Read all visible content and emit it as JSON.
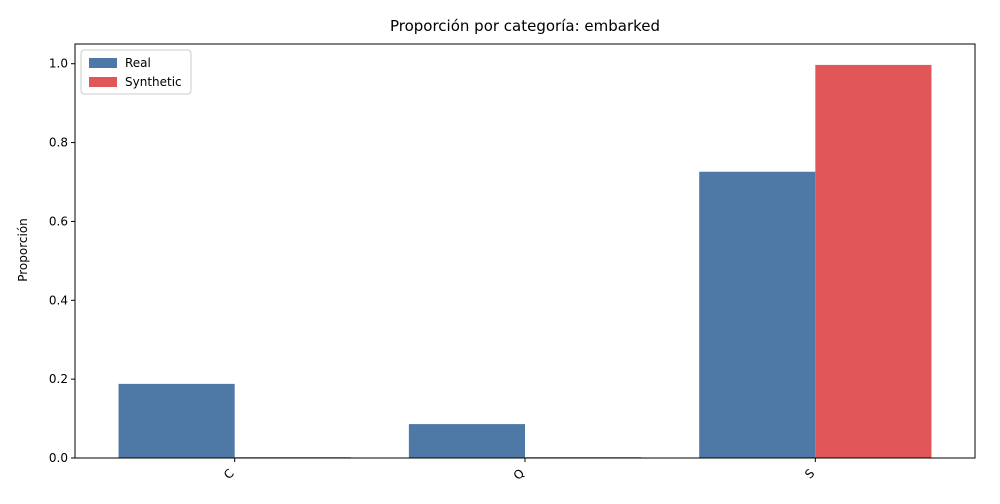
{
  "chart_data": {
    "type": "bar",
    "title": "Proporción por categoría: embarked",
    "xlabel": "",
    "ylabel": "Proporción",
    "categories": [
      "C",
      "Q",
      "S"
    ],
    "series": [
      {
        "name": "Real",
        "values": [
          0.188,
          0.086,
          0.726
        ],
        "color": "#4e79a7"
      },
      {
        "name": "Synthetic",
        "values": [
          0.002,
          0.002,
          0.997
        ],
        "color": "#e15759"
      }
    ],
    "ylim": [
      0,
      1.05
    ],
    "yticks": [
      0.0,
      0.2,
      0.4,
      0.6,
      0.8,
      1.0
    ],
    "ytick_labels": [
      "0.0",
      "0.2",
      "0.4",
      "0.6",
      "0.8",
      "1.0"
    ],
    "grid": false,
    "legend_position": "top-left"
  }
}
